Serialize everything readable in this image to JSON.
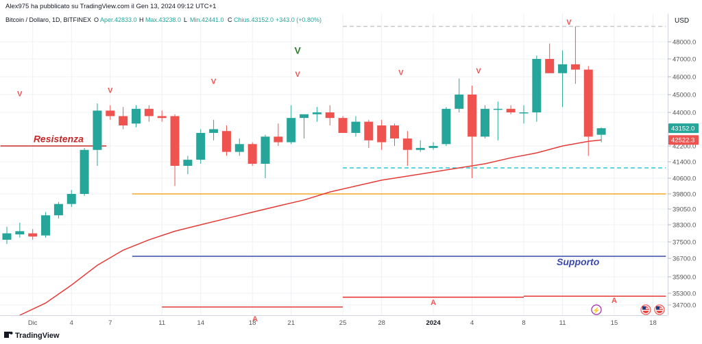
{
  "header": {
    "publisher": "Alex975 ha pubblicato su TradingView.com il Gen 13, 2024 09:12 UTC+1",
    "symbol": "Bitcoin / Dollaro, 1D, BITFINEX",
    "o_label": "O",
    "o_value": "Aper.42833.0",
    "h_label": "H",
    "h_value": "Max.43238.0",
    "l_label": "L",
    "l_value": "Min.42441.0",
    "c_label": "C",
    "c_value": "Chius.43152.0",
    "change": "+343.0 (+0.80%)"
  },
  "footer": {
    "brand": "TradingView"
  },
  "colors": {
    "up": "#26a69a",
    "down": "#ef5350",
    "ma": "#e53935",
    "support": "#3949ab",
    "orange": "#f5a623",
    "cyan": "#26c6da",
    "resistance": "#c62828",
    "text": "#131722",
    "axis_text": "#555555",
    "grid": "#eef0f3",
    "green_marker": "#2e7d32"
  },
  "chart_data": {
    "type": "candlestick",
    "y_axis": {
      "label": "USD",
      "ticks": [
        48000,
        47000,
        46000,
        45000,
        44000,
        42200,
        41400,
        40600,
        39800,
        39050,
        38300,
        37500,
        36700,
        35900,
        35300,
        34700
      ],
      "tick_labels": [
        "48000.0",
        "47000.0",
        "46000.0",
        "45000.0",
        "44000.0",
        "42200.0",
        "41400.0",
        "40600.0",
        "39800.0",
        "39050.0",
        "38300.0",
        "37500.0",
        "36700.0",
        "35900.0",
        "35300.0",
        "34700.0"
      ],
      "ylim": [
        34200,
        49000
      ],
      "price_tags": [
        {
          "text": "43152.0",
          "value": 43152,
          "color": "up"
        },
        {
          "text": "42522.3",
          "value": 42522.3,
          "color": "down"
        }
      ]
    },
    "x_axis": {
      "ticks": [
        {
          "label": "Dic",
          "i": 2
        },
        {
          "label": "4",
          "i": 5
        },
        {
          "label": "7",
          "i": 8
        },
        {
          "label": "11",
          "i": 12
        },
        {
          "label": "14",
          "i": 15
        },
        {
          "label": "18",
          "i": 19
        },
        {
          "label": "21",
          "i": 22
        },
        {
          "label": "25",
          "i": 26
        },
        {
          "label": "28",
          "i": 29
        },
        {
          "label": "2024",
          "i": 33
        },
        {
          "label": "4",
          "i": 36
        },
        {
          "label": "8",
          "i": 40
        },
        {
          "label": "11",
          "i": 43
        },
        {
          "label": "15",
          "i": 47
        },
        {
          "label": "18",
          "i": 50
        }
      ],
      "range": [
        -0.5,
        51
      ]
    },
    "candles": [
      {
        "o": 37600,
        "h": 38200,
        "l": 37400,
        "c": 37900
      },
      {
        "o": 37850,
        "h": 38400,
        "l": 37700,
        "c": 38000
      },
      {
        "o": 37900,
        "h": 38100,
        "l": 37600,
        "c": 37750
      },
      {
        "o": 37800,
        "h": 38900,
        "l": 37700,
        "c": 38750
      },
      {
        "o": 38750,
        "h": 39400,
        "l": 38600,
        "c": 39300
      },
      {
        "o": 39300,
        "h": 40000,
        "l": 39150,
        "c": 39800
      },
      {
        "o": 39800,
        "h": 42100,
        "l": 39700,
        "c": 42000
      },
      {
        "o": 42000,
        "h": 44500,
        "l": 41200,
        "c": 44100
      },
      {
        "o": 44100,
        "h": 44400,
        "l": 43600,
        "c": 43800
      },
      {
        "o": 43800,
        "h": 44300,
        "l": 43100,
        "c": 43300
      },
      {
        "o": 43400,
        "h": 44400,
        "l": 43200,
        "c": 44200
      },
      {
        "o": 44200,
        "h": 44400,
        "l": 43500,
        "c": 43800
      },
      {
        "o": 43800,
        "h": 44100,
        "l": 43500,
        "c": 43700
      },
      {
        "o": 43800,
        "h": 43900,
        "l": 40200,
        "c": 41200
      },
      {
        "o": 41200,
        "h": 41700,
        "l": 40800,
        "c": 41500
      },
      {
        "o": 41500,
        "h": 43100,
        "l": 41300,
        "c": 42900
      },
      {
        "o": 42900,
        "h": 43600,
        "l": 42500,
        "c": 43100
      },
      {
        "o": 43000,
        "h": 43300,
        "l": 41700,
        "c": 41900
      },
      {
        "o": 41900,
        "h": 42600,
        "l": 41700,
        "c": 42300
      },
      {
        "o": 42300,
        "h": 42400,
        "l": 41200,
        "c": 41300
      },
      {
        "o": 41300,
        "h": 42800,
        "l": 40600,
        "c": 42700
      },
      {
        "o": 42700,
        "h": 43400,
        "l": 42200,
        "c": 42400
      },
      {
        "o": 42400,
        "h": 44400,
        "l": 42300,
        "c": 43700
      },
      {
        "o": 43700,
        "h": 43800,
        "l": 42600,
        "c": 43900
      },
      {
        "o": 43900,
        "h": 44300,
        "l": 43500,
        "c": 44000
      },
      {
        "o": 44000,
        "h": 44400,
        "l": 43300,
        "c": 43700
      },
      {
        "o": 43700,
        "h": 43800,
        "l": 42900,
        "c": 42900
      },
      {
        "o": 42900,
        "h": 43800,
        "l": 42700,
        "c": 43500
      },
      {
        "o": 43500,
        "h": 43600,
        "l": 42100,
        "c": 42500
      },
      {
        "o": 43300,
        "h": 43600,
        "l": 42000,
        "c": 42400
      },
      {
        "o": 43300,
        "h": 43400,
        "l": 42200,
        "c": 42600
      },
      {
        "o": 42600,
        "h": 43000,
        "l": 41200,
        "c": 42000
      },
      {
        "o": 42000,
        "h": 42500,
        "l": 41900,
        "c": 42100
      },
      {
        "o": 42100,
        "h": 42400,
        "l": 42000,
        "c": 42200
      },
      {
        "o": 42300,
        "h": 44300,
        "l": 42200,
        "c": 44200
      },
      {
        "o": 44200,
        "h": 45900,
        "l": 44000,
        "c": 45000
      },
      {
        "o": 45000,
        "h": 45500,
        "l": 40600,
        "c": 42700
      },
      {
        "o": 42700,
        "h": 44400,
        "l": 42600,
        "c": 44200
      },
      {
        "o": 44200,
        "h": 44600,
        "l": 42500,
        "c": 44200
      },
      {
        "o": 44200,
        "h": 44400,
        "l": 43900,
        "c": 44000
      },
      {
        "o": 44000,
        "h": 44400,
        "l": 43400,
        "c": 44000
      },
      {
        "o": 44000,
        "h": 47200,
        "l": 43500,
        "c": 47000
      },
      {
        "o": 47000,
        "h": 47900,
        "l": 46200,
        "c": 46200
      },
      {
        "o": 46200,
        "h": 47500,
        "l": 44300,
        "c": 46700
      },
      {
        "o": 46700,
        "h": 48900,
        "l": 45600,
        "c": 46400
      },
      {
        "o": 46400,
        "h": 46600,
        "l": 41700,
        "c": 42700
      },
      {
        "o": 42800,
        "h": 43200,
        "l": 42400,
        "c": 43150
      }
    ],
    "moving_average": [
      {
        "i": 1,
        "v": 34200
      },
      {
        "i": 3,
        "v": 34800
      },
      {
        "i": 5,
        "v": 35600
      },
      {
        "i": 7,
        "v": 36400
      },
      {
        "i": 9,
        "v": 37100
      },
      {
        "i": 11,
        "v": 37600
      },
      {
        "i": 13,
        "v": 38000
      },
      {
        "i": 15,
        "v": 38300
      },
      {
        "i": 17,
        "v": 38600
      },
      {
        "i": 19,
        "v": 38900
      },
      {
        "i": 21,
        "v": 39200
      },
      {
        "i": 23,
        "v": 39500
      },
      {
        "i": 25,
        "v": 39900
      },
      {
        "i": 27,
        "v": 40200
      },
      {
        "i": 29,
        "v": 40500
      },
      {
        "i": 31,
        "v": 40700
      },
      {
        "i": 33,
        "v": 40900
      },
      {
        "i": 35,
        "v": 41100
      },
      {
        "i": 37,
        "v": 41300
      },
      {
        "i": 39,
        "v": 41600
      },
      {
        "i": 41,
        "v": 41850
      },
      {
        "i": 43,
        "v": 42200
      },
      {
        "i": 45,
        "v": 42450
      },
      {
        "i": 46,
        "v": 42522
      }
    ],
    "levels": [
      {
        "name": "resistance",
        "value": 42200,
        "x0": -0.5,
        "x1": 7.7,
        "color": "resistance",
        "style": "solid"
      },
      {
        "name": "orange",
        "value": 39800,
        "x0": 9.7,
        "x1": 51,
        "color": "orange",
        "style": "solid"
      },
      {
        "name": "support",
        "value": 36800,
        "x0": 9.7,
        "x1": 51,
        "color": "support",
        "style": "solid"
      },
      {
        "name": "cyan",
        "value": 41100,
        "x0": 26,
        "x1": 51,
        "color": "cyan",
        "style": "dashed"
      },
      {
        "name": "top-dashed",
        "value": 48900,
        "x0": 26,
        "x1": 51,
        "color": "grey",
        "style": "dashed"
      }
    ],
    "annotations": [
      {
        "text": "Resistenza",
        "i": 4,
        "value": 42400,
        "color": "resistance",
        "size": 14
      },
      {
        "text": "Supporto",
        "i": 44.2,
        "value": 36400,
        "color": "support",
        "size": 14
      }
    ],
    "markers": [
      {
        "text": "V",
        "i": 1,
        "value": 44900,
        "color": "down"
      },
      {
        "text": "V",
        "i": 8,
        "value": 45100,
        "color": "down"
      },
      {
        "text": "V",
        "i": 16,
        "value": 45600,
        "color": "down"
      },
      {
        "text": "V",
        "i": 22.5,
        "value": 46000,
        "color": "down"
      },
      {
        "text": "V",
        "i": 22.5,
        "value": 47300,
        "color": "green_marker"
      },
      {
        "text": "V",
        "i": 30.5,
        "value": 46100,
        "color": "down"
      },
      {
        "text": "V",
        "i": 36.5,
        "value": 46200,
        "color": "down"
      },
      {
        "text": "V",
        "i": 43.5,
        "value": 49000,
        "color": "down"
      },
      {
        "text": "A",
        "i": 19.2,
        "value": 33900,
        "color": "down"
      },
      {
        "text": "A",
        "i": 33,
        "value": 34700,
        "color": "down"
      },
      {
        "text": "A",
        "i": 47,
        "value": 34800,
        "color": "down"
      }
    ],
    "red_segments": [
      {
        "value": 34600,
        "x0": 12,
        "x1": 26
      },
      {
        "value": 35100,
        "x0": 26,
        "x1": 40
      },
      {
        "value": 35150,
        "x0": 40,
        "x1": 51
      }
    ]
  }
}
